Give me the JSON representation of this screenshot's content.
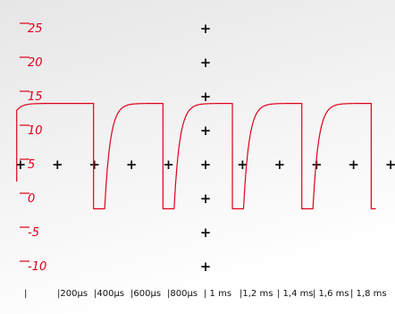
{
  "colors": {
    "trace": "#e0001b",
    "axis_labels": "#e0001b",
    "grid_marks": "#111111",
    "time_labels": "#111111",
    "background_top": "#e6e6e6",
    "background_bottom": "#ffffff"
  },
  "chart_data": {
    "type": "line",
    "title": "",
    "xlabel": "",
    "ylabel": "",
    "grid": "cross markers",
    "y_tick_labels": [
      "25",
      "20",
      "15",
      "10",
      "5",
      "0",
      "-5",
      "-10"
    ],
    "y_ticks": [
      25,
      20,
      15,
      10,
      5,
      0,
      -5,
      -10
    ],
    "ylim": [
      -12.5,
      30
    ],
    "xlim": [
      -0.05,
      2.0
    ],
    "x_tick_labels": [
      "|",
      "|200µs",
      "|400µs",
      "|600µs",
      "|800µs",
      "| 1 ms",
      "|1,2 ms",
      "| 1,4 ms",
      "| 1,6 ms",
      "| 1,8 ms"
    ],
    "x_ticks_ms": [
      0,
      0.2,
      0.4,
      0.6,
      0.8,
      1.0,
      1.2,
      1.4,
      1.6,
      1.8
    ],
    "grid_markers": {
      "horizontal_row_y": 5,
      "horizontal_row_x_ms": [
        -0.02,
        0.18,
        0.38,
        0.58,
        0.78,
        0.98,
        1.18,
        1.38,
        1.58,
        1.78,
        1.98
      ],
      "vertical_column_x_ms": 0.98,
      "vertical_column_y": [
        25,
        20,
        15,
        10,
        0,
        -5,
        -10
      ]
    },
    "series": [
      {
        "period_ms": 0.375,
        "high_level": 14,
        "low_level": -1.5,
        "pulse_starts_ms": [
          0.06,
          0.435,
          0.81,
          1.185,
          1.56
        ],
        "pulse_high_duration_ms": 0.315,
        "pulse_low_duration_ms": 0.025,
        "rise_time_constant_ms": 0.03,
        "start_level": 2.5,
        "start_x_ms": -0.04,
        "end_x_ms": 1.98
      }
    ]
  }
}
